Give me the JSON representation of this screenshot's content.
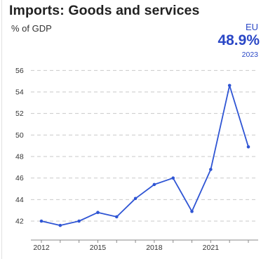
{
  "header": {
    "title": "Imports: Goods and services",
    "subtitle": "% of GDP"
  },
  "kpi": {
    "region": "EU",
    "value": "48.9%",
    "year": "2023"
  },
  "colors": {
    "accent": "#2a47c6",
    "line": "#2f55d4",
    "grid": "#c9c9c9",
    "text": "#222222"
  },
  "chart_data": {
    "type": "line",
    "title": "Imports: Goods and services",
    "ylabel": "% of GDP",
    "xlabel": "",
    "x": [
      2012,
      2013,
      2014,
      2015,
      2016,
      2017,
      2018,
      2019,
      2020,
      2021,
      2022,
      2023
    ],
    "series": [
      {
        "name": "EU",
        "values": [
          42.0,
          41.6,
          42.0,
          42.8,
          42.4,
          44.1,
          45.4,
          46.0,
          42.9,
          46.8,
          54.6,
          48.9
        ]
      }
    ],
    "ylim": [
      41,
      56
    ],
    "xlim": [
      2012,
      2023
    ],
    "yticks": [
      42,
      44,
      46,
      48,
      50,
      52,
      54,
      56
    ],
    "xticks": [
      2012,
      2015,
      2018,
      2021
    ],
    "grid": true,
    "grid_style": "dashed horizontal",
    "legend": "none"
  }
}
